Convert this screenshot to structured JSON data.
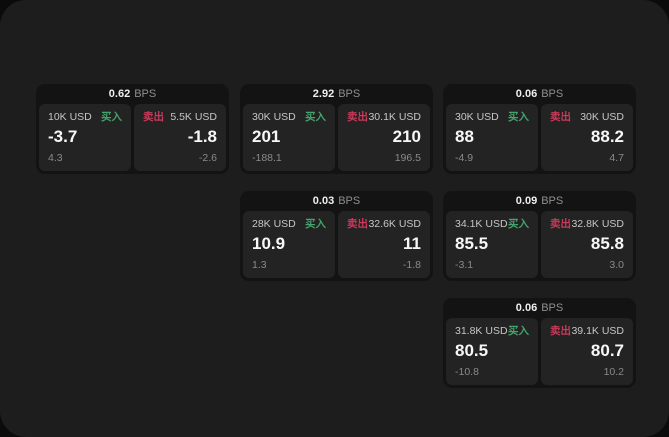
{
  "labels": {
    "bps": "BPS",
    "buy": "买入",
    "sell": "卖出"
  },
  "colors": {
    "buy_green": "#45a36c",
    "sell_red": "#c9395a",
    "window_bg": "#1d1d1d",
    "outer_bg": "#0b0b0b",
    "card_bg": "#131313",
    "panel_bg": "#232323"
  },
  "cards": [
    {
      "bps": "0.62",
      "buy": {
        "amount": "10K USD",
        "value": "-3.7",
        "delta": "4.3"
      },
      "sell": {
        "amount": "5.5K USD",
        "value": "-1.8",
        "delta": "-2.6"
      }
    },
    {
      "bps": "2.92",
      "buy": {
        "amount": "30K USD",
        "value": "201",
        "delta": "-188.1"
      },
      "sell": {
        "amount": "30.1K USD",
        "value": "210",
        "delta": "196.5"
      }
    },
    {
      "bps": "0.06",
      "buy": {
        "amount": "30K USD",
        "value": "88",
        "delta": "-4.9"
      },
      "sell": {
        "amount": "30K USD",
        "value": "88.2",
        "delta": "4.7"
      }
    },
    {
      "bps": "0.03",
      "buy": {
        "amount": "28K USD",
        "value": "10.9",
        "delta": "1.3"
      },
      "sell": {
        "amount": "32.6K USD",
        "value": "11",
        "delta": "-1.8"
      }
    },
    {
      "bps": "0.09",
      "buy": {
        "amount": "34.1K USD",
        "value": "85.5",
        "delta": "-3.1"
      },
      "sell": {
        "amount": "32.8K USD",
        "value": "85.8",
        "delta": "3.0"
      }
    },
    {
      "bps": "0.06",
      "buy": {
        "amount": "31.8K USD",
        "value": "80.5",
        "delta": "-10.8"
      },
      "sell": {
        "amount": "39.1K USD",
        "value": "80.7",
        "delta": "10.2"
      }
    }
  ]
}
